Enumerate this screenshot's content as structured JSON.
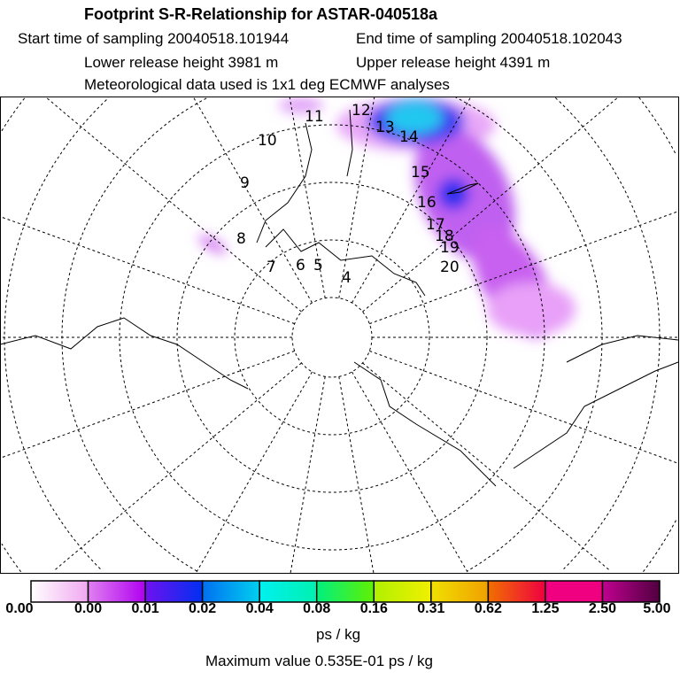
{
  "header": {
    "title": "Footprint S-R-Relationship for ASTAR-040518a",
    "start_time": "Start time of sampling 20040518.101944",
    "end_time": "End time of sampling 20040518.102043",
    "lower_height": "Lower release height 3981 m",
    "upper_height": "Upper release height 4391 m",
    "met_data": "Meteorological data used is 1x1 deg ECMWF analyses"
  },
  "chart_data": {
    "type": "heatmap",
    "projection": "polar stereographic (North Pole)",
    "track_labels": [
      "4",
      "5",
      "6",
      "7",
      "8",
      "9",
      "10",
      "11",
      "12",
      "13",
      "14",
      "15",
      "16",
      "17",
      "18",
      "19",
      "20"
    ],
    "colorbar": {
      "tick_labels": [
        "0.00",
        "0.00",
        "0.01",
        "0.02",
        "0.04",
        "0.08",
        "0.16",
        "0.31",
        "0.62",
        "1.25",
        "2.50",
        "5.00"
      ],
      "segment_colors": [
        [
          "#ffffff",
          "#f0a8f0"
        ],
        [
          "#e080f0",
          "#b000f0"
        ],
        [
          "#7010f0",
          "#0030f0"
        ],
        [
          "#0070f0",
          "#00d0f0"
        ],
        [
          "#00f0f0",
          "#00f0b0"
        ],
        [
          "#00f080",
          "#60f000"
        ],
        [
          "#b0f000",
          "#f0f000"
        ],
        [
          "#f0e000",
          "#f0a000"
        ],
        [
          "#f07000",
          "#f00040"
        ],
        [
          "#f00080",
          "#f00080"
        ],
        [
          "#c00090",
          "#500040"
        ]
      ],
      "unit": "ps / kg"
    },
    "max_value_text": "Maximum value  0.535E-01 ps / kg"
  }
}
